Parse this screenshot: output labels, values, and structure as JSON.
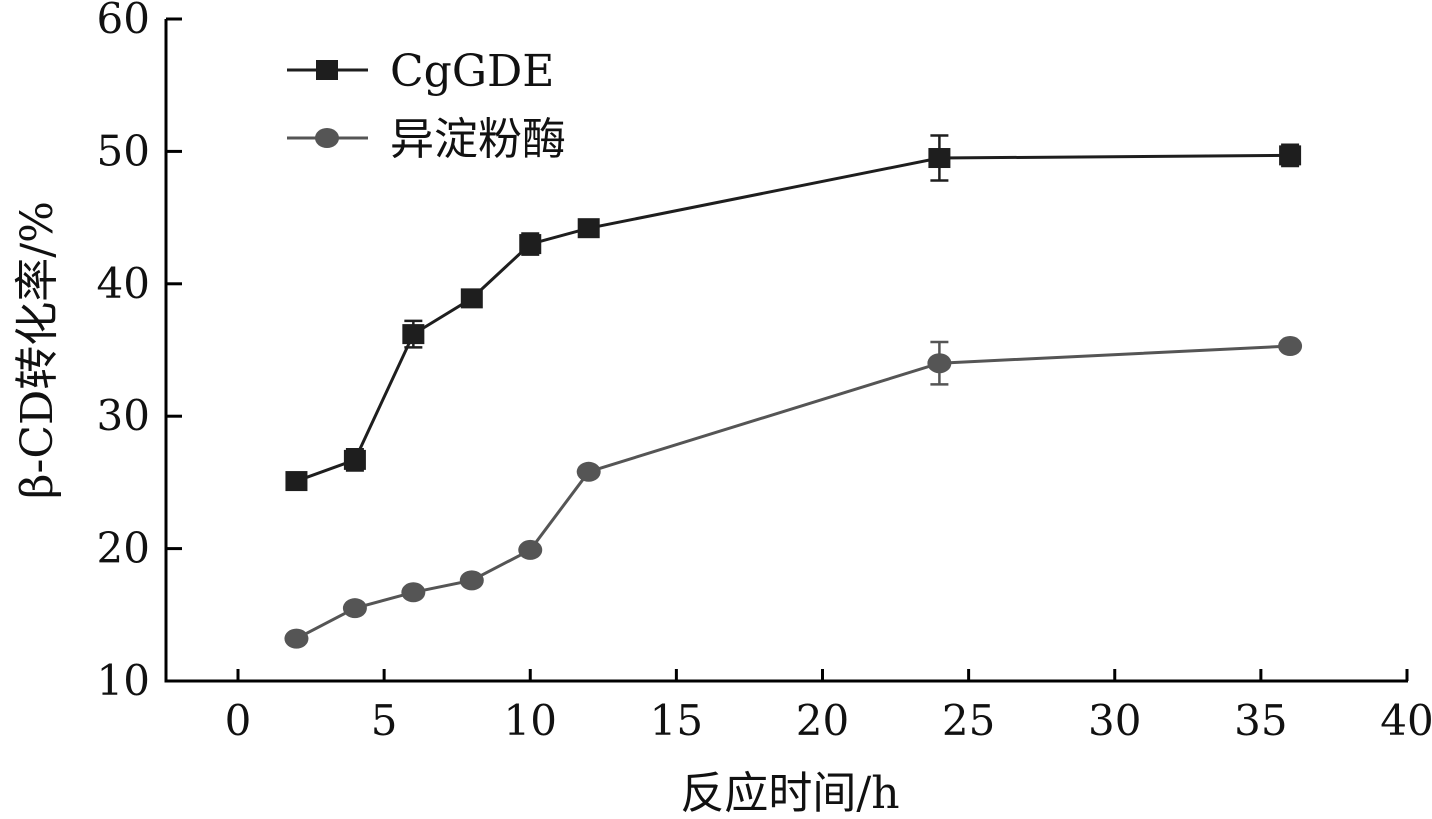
{
  "chart_data": {
    "type": "line",
    "title": "",
    "xlabel": "反应时间/h",
    "ylabel": "β-CD转化率/%",
    "xlim": [
      -2.5,
      40
    ],
    "ylim": [
      10,
      60
    ],
    "xticks": [
      0,
      5,
      10,
      15,
      20,
      25,
      30,
      35,
      40
    ],
    "yticks": [
      10,
      20,
      30,
      40,
      50,
      60
    ],
    "grid": false,
    "legend_position": "top-left",
    "x": [
      2,
      4,
      6,
      8,
      10,
      12,
      24,
      36
    ],
    "series": [
      {
        "name": "CgGDE",
        "marker": "square",
        "color": "#1e1e1e",
        "values": [
          25.1,
          26.7,
          36.2,
          38.9,
          43.0,
          44.2,
          49.5,
          49.7
        ],
        "errors": [
          0.3,
          0.8,
          1.0,
          0.3,
          0.8,
          0.3,
          1.7,
          0.8
        ]
      },
      {
        "name": "异淀粉酶",
        "marker": "circle",
        "color": "#555555",
        "values": [
          13.2,
          15.5,
          16.7,
          17.6,
          19.9,
          25.8,
          34.0,
          35.3
        ],
        "errors": [
          0.3,
          0.3,
          0.3,
          0.3,
          0.3,
          0.3,
          1.6,
          0.3
        ]
      }
    ]
  }
}
